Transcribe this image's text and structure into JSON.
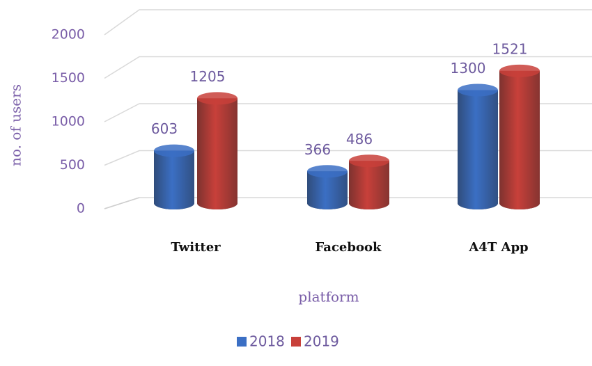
{
  "chart_data": {
    "type": "bar",
    "categories": [
      "Twitter",
      "Facebook",
      "A4T App"
    ],
    "series": [
      {
        "name": "2018",
        "color": "#3b6fc4",
        "values": [
          603,
          366,
          1300
        ]
      },
      {
        "name": "2019",
        "color": "#c8403a",
        "values": [
          1205,
          486,
          1521
        ]
      }
    ],
    "x_label": "platform",
    "y_label": "no. of users",
    "ylim": [
      0,
      2000
    ],
    "yticks": [
      0,
      500,
      1000,
      1500,
      2000
    ],
    "grid": true,
    "legend": "bottom"
  }
}
